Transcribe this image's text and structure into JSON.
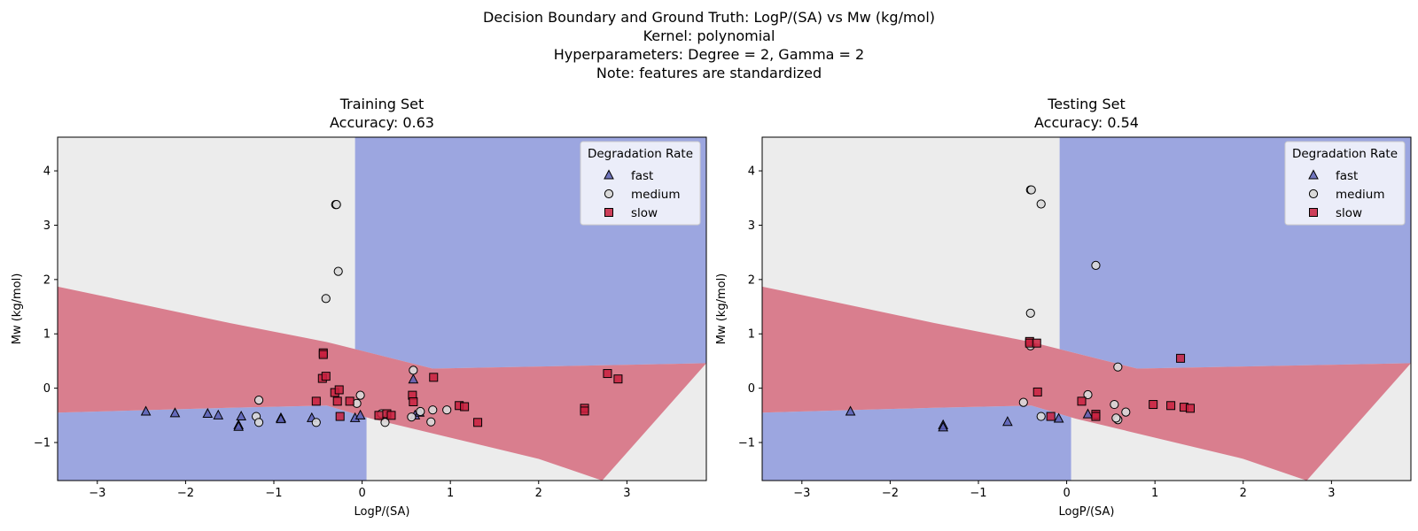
{
  "figure": {
    "suptitle_lines": [
      "Decision Boundary and Ground Truth: LogP/(SA) vs Mw (kg/mol)",
      "Kernel: polynomial",
      "Hyperparameters: Degree = 2, Gamma = 2",
      "Note: features are standardized"
    ]
  },
  "colors": {
    "fast": "#5b5fb4",
    "medium": "#d9d9d9",
    "slow": "#c8203e",
    "region_fast": "#9ca6e0",
    "region_medium": "#ececec",
    "region_slow": "#d97e8e"
  },
  "chart_data": [
    {
      "type": "scatter",
      "title_lines": [
        "Training Set",
        "Accuracy: 0.63"
      ],
      "xlabel": "LogP/(SA)",
      "ylabel": "Mw (kg/mol)",
      "xlim": [
        -3.45,
        3.9
      ],
      "ylim": [
        -1.7,
        4.62
      ],
      "xticks": [
        -3,
        -2,
        -1,
        0,
        1,
        2,
        3
      ],
      "yticks": [
        -1,
        0,
        1,
        2,
        3,
        4
      ],
      "grid": false,
      "legend": {
        "title": "Degradation Rate",
        "placement": "top-right",
        "entries": [
          "fast",
          "medium",
          "slow"
        ]
      },
      "regions": {
        "slow_band_upper": [
          [
            -3.45,
            1.87
          ],
          [
            -1.5,
            1.2
          ],
          [
            -0.4,
            0.85
          ],
          [
            0.8,
            0.36
          ],
          [
            3.9,
            0.46
          ]
        ],
        "slow_band_lower": [
          [
            -3.45,
            -0.45
          ],
          [
            -1.5,
            -0.36
          ],
          [
            -0.4,
            -0.32
          ],
          [
            0.1,
            -0.56
          ],
          [
            2.0,
            -1.3
          ],
          [
            2.72,
            -1.7
          ]
        ],
        "upper_split_x": -0.08,
        "lower_split_x": 0.05
      },
      "series": [
        {
          "name": "fast",
          "marker": "triangle",
          "points": [
            [
              -2.45,
              -0.43
            ],
            [
              -2.12,
              -0.46
            ],
            [
              -1.75,
              -0.47
            ],
            [
              -1.63,
              -0.5
            ],
            [
              -1.37,
              -0.52
            ],
            [
              -1.4,
              -0.68
            ],
            [
              -1.4,
              -0.71
            ],
            [
              -0.92,
              -0.55
            ],
            [
              -0.92,
              -0.57
            ],
            [
              -0.57,
              -0.55
            ],
            [
              -0.08,
              -0.55
            ],
            [
              -0.02,
              -0.5
            ],
            [
              0.58,
              0.16
            ],
            [
              0.6,
              -0.5
            ],
            [
              0.65,
              -0.45
            ]
          ]
        },
        {
          "name": "medium",
          "marker": "circle",
          "points": [
            [
              -0.3,
              3.38
            ],
            [
              -0.29,
              3.38
            ],
            [
              -0.27,
              2.15
            ],
            [
              -0.41,
              1.65
            ],
            [
              -1.17,
              -0.22
            ],
            [
              -1.2,
              -0.52
            ],
            [
              -1.17,
              -0.63
            ],
            [
              -0.52,
              -0.63
            ],
            [
              -0.06,
              -0.28
            ],
            [
              -0.02,
              -0.13
            ],
            [
              0.22,
              -0.47
            ],
            [
              0.26,
              -0.63
            ],
            [
              0.58,
              0.33
            ],
            [
              0.56,
              -0.53
            ],
            [
              0.66,
              -0.43
            ],
            [
              0.8,
              -0.4
            ],
            [
              0.78,
              -0.62
            ],
            [
              0.96,
              -0.4
            ]
          ]
        },
        {
          "name": "slow",
          "marker": "square",
          "points": [
            [
              -0.44,
              0.65
            ],
            [
              -0.44,
              0.62
            ],
            [
              -0.45,
              0.18
            ],
            [
              -0.41,
              0.22
            ],
            [
              -0.52,
              -0.24
            ],
            [
              -0.31,
              -0.08
            ],
            [
              -0.28,
              -0.24
            ],
            [
              -0.26,
              -0.03
            ],
            [
              -0.25,
              -0.52
            ],
            [
              -0.14,
              -0.24
            ],
            [
              0.19,
              -0.5
            ],
            [
              0.28,
              -0.47
            ],
            [
              0.33,
              -0.5
            ],
            [
              0.57,
              -0.13
            ],
            [
              0.58,
              -0.25
            ],
            [
              0.81,
              0.2
            ],
            [
              1.1,
              -0.32
            ],
            [
              1.16,
              -0.34
            ],
            [
              1.31,
              -0.63
            ],
            [
              2.52,
              -0.37
            ],
            [
              2.52,
              -0.42
            ],
            [
              2.78,
              0.27
            ],
            [
              2.9,
              0.17
            ]
          ]
        }
      ]
    },
    {
      "type": "scatter",
      "title_lines": [
        "Testing Set",
        "Accuracy: 0.54"
      ],
      "xlabel": "LogP/(SA)",
      "ylabel": "Mw (kg/mol)",
      "xlim": [
        -3.45,
        3.9
      ],
      "ylim": [
        -1.7,
        4.62
      ],
      "xticks": [
        -3,
        -2,
        -1,
        0,
        1,
        2,
        3
      ],
      "yticks": [
        -1,
        0,
        1,
        2,
        3,
        4
      ],
      "grid": false,
      "legend": {
        "title": "Degradation Rate",
        "placement": "top-right",
        "entries": [
          "fast",
          "medium",
          "slow"
        ]
      },
      "regions": {
        "slow_band_upper": [
          [
            -3.45,
            1.87
          ],
          [
            -1.5,
            1.2
          ],
          [
            -0.4,
            0.85
          ],
          [
            0.8,
            0.36
          ],
          [
            3.9,
            0.46
          ]
        ],
        "slow_band_lower": [
          [
            -3.45,
            -0.45
          ],
          [
            -1.5,
            -0.36
          ],
          [
            -0.4,
            -0.32
          ],
          [
            0.1,
            -0.56
          ],
          [
            2.0,
            -1.3
          ],
          [
            2.72,
            -1.7
          ]
        ],
        "upper_split_x": -0.08,
        "lower_split_x": 0.05
      },
      "series": [
        {
          "name": "fast",
          "marker": "triangle",
          "points": [
            [
              -2.45,
              -0.43
            ],
            [
              -1.4,
              -0.68
            ],
            [
              -1.4,
              -0.72
            ],
            [
              -0.67,
              -0.62
            ],
            [
              -0.09,
              -0.56
            ],
            [
              0.24,
              -0.48
            ]
          ]
        },
        {
          "name": "medium",
          "marker": "circle",
          "points": [
            [
              -0.41,
              3.65
            ],
            [
              -0.4,
              3.65
            ],
            [
              -0.29,
              3.39
            ],
            [
              0.33,
              2.26
            ],
            [
              -0.41,
              1.38
            ],
            [
              -0.41,
              0.78
            ],
            [
              -0.49,
              -0.26
            ],
            [
              -0.29,
              -0.52
            ],
            [
              0.24,
              -0.12
            ],
            [
              0.33,
              -0.5
            ],
            [
              0.54,
              -0.3
            ],
            [
              0.58,
              -0.58
            ],
            [
              0.58,
              0.39
            ],
            [
              0.56,
              -0.55
            ],
            [
              0.67,
              -0.44
            ]
          ]
        },
        {
          "name": "slow",
          "marker": "square",
          "points": [
            [
              -0.42,
              0.86
            ],
            [
              -0.42,
              0.83
            ],
            [
              -0.34,
              0.83
            ],
            [
              -0.33,
              -0.07
            ],
            [
              -0.18,
              -0.52
            ],
            [
              0.17,
              -0.24
            ],
            [
              0.33,
              -0.48
            ],
            [
              0.33,
              -0.52
            ],
            [
              0.98,
              -0.3
            ],
            [
              1.18,
              -0.32
            ],
            [
              1.29,
              0.55
            ],
            [
              1.33,
              -0.35
            ],
            [
              1.4,
              -0.37
            ]
          ]
        }
      ]
    }
  ]
}
